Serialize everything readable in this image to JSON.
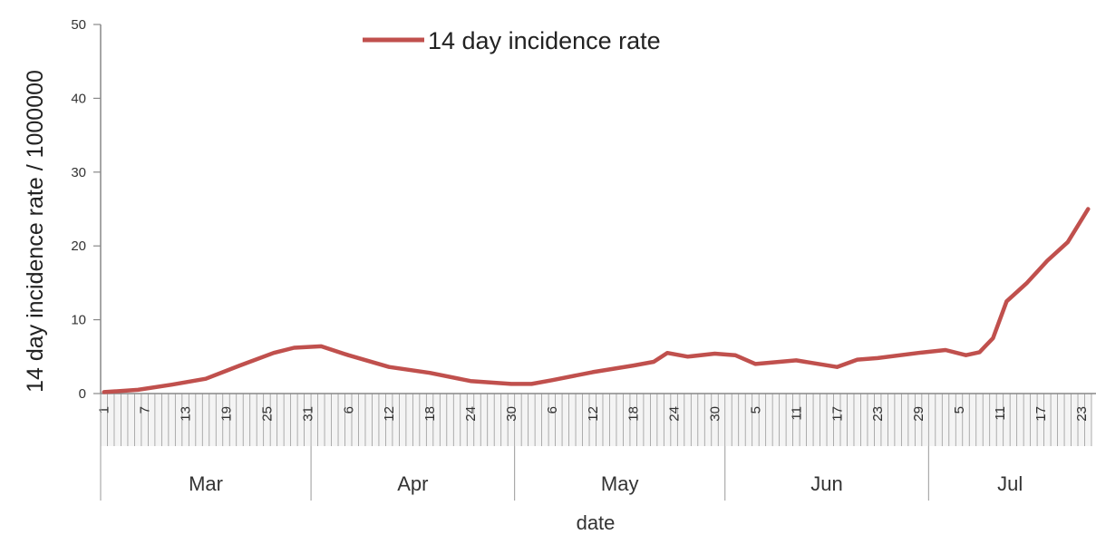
{
  "chart_data": {
    "type": "line",
    "xlabel": "date",
    "ylabel": "14 day incidence rate / 1000000",
    "ylim": [
      0,
      50
    ],
    "y_ticks": [
      "0",
      "10",
      "20",
      "30",
      "40",
      "50"
    ],
    "grid": false,
    "legend": {
      "position": "top-center"
    },
    "series": [
      {
        "name": "14 day incidence rate",
        "color": "#c0504d",
        "x": [
          "2020-03-01",
          "2020-03-06",
          "2020-03-11",
          "2020-03-16",
          "2020-03-21",
          "2020-03-26",
          "2020-03-29",
          "2020-04-02",
          "2020-04-06",
          "2020-04-12",
          "2020-04-18",
          "2020-04-24",
          "2020-04-30",
          "2020-05-03",
          "2020-05-06",
          "2020-05-12",
          "2020-05-18",
          "2020-05-21",
          "2020-05-23",
          "2020-05-26",
          "2020-05-30",
          "2020-06-02",
          "2020-06-05",
          "2020-06-11",
          "2020-06-17",
          "2020-06-20",
          "2020-06-23",
          "2020-06-29",
          "2020-07-03",
          "2020-07-06",
          "2020-07-08",
          "2020-07-10",
          "2020-07-12",
          "2020-07-15",
          "2020-07-18",
          "2020-07-21",
          "2020-07-24"
        ],
        "y": [
          0.2,
          0.5,
          1.2,
          2.0,
          3.8,
          5.5,
          6.2,
          6.4,
          5.2,
          3.6,
          2.8,
          1.7,
          1.3,
          1.3,
          1.8,
          2.9,
          3.8,
          4.3,
          5.5,
          5.0,
          5.4,
          5.2,
          4.0,
          4.5,
          3.6,
          4.6,
          4.8,
          5.5,
          5.9,
          5.2,
          5.6,
          7.5,
          12.5,
          15.0,
          18.0,
          20.5,
          25.0
        ]
      }
    ],
    "x_ticks": [
      "1",
      "7",
      "13",
      "19",
      "25",
      "31",
      "6",
      "12",
      "18",
      "24",
      "30",
      "6",
      "12",
      "18",
      "24",
      "30",
      "5",
      "11",
      "17",
      "23",
      "29",
      "5",
      "11",
      "17",
      "23"
    ],
    "months": [
      "Mar",
      "Apr",
      "May",
      "Jun",
      "Jul"
    ]
  }
}
